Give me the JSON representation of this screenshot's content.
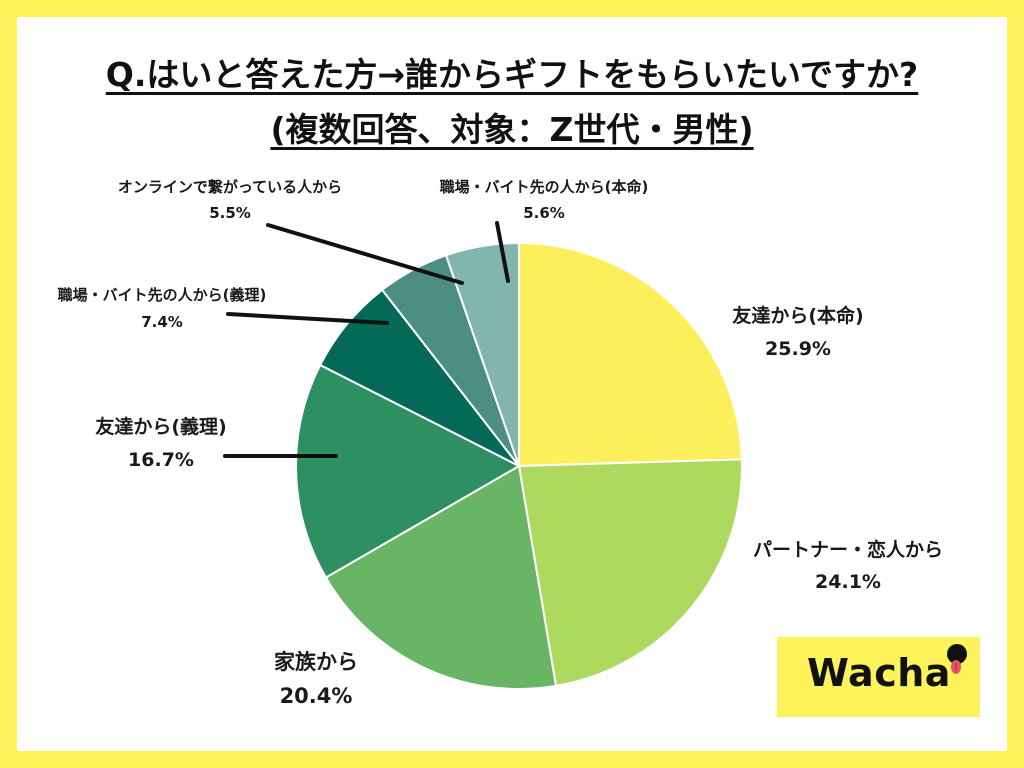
{
  "title": {
    "line1": "Q.はいと答えた方→誰からギフトをもらいたいですか?",
    "line2": "(複数回答、対象：Z世代・男性)"
  },
  "logo": {
    "text": "Wacha",
    "icon": "tongue-face-icon"
  },
  "chart_data": {
    "type": "pie",
    "title": "Q.はいと答えた方→誰からギフトをもらいたいですか? (複数回答、対象：Z世代・男性)",
    "slices": [
      {
        "label": "友達から(本命)",
        "value": 25.9,
        "display": "25.9%",
        "color": "#fbf05c"
      },
      {
        "label": "パートナー・恋人から",
        "value": 24.1,
        "display": "24.1%",
        "color": "#acd95e"
      },
      {
        "label": "家族から",
        "value": 20.4,
        "display": "20.4%",
        "color": "#67b565"
      },
      {
        "label": "友達から(義理)",
        "value": 16.7,
        "display": "16.7%",
        "color": "#2d8f62"
      },
      {
        "label": "職場・バイト先の人から(義理)",
        "value": 7.4,
        "display": "7.4%",
        "color": "#046956"
      },
      {
        "label": "オンラインで繋がっている人から",
        "value": 5.5,
        "display": "5.5%",
        "color": "#4d8e83"
      },
      {
        "label": "職場・バイト先の人から(本命)",
        "value": 5.6,
        "display": "5.6%",
        "color": "#82b5ad"
      }
    ]
  }
}
